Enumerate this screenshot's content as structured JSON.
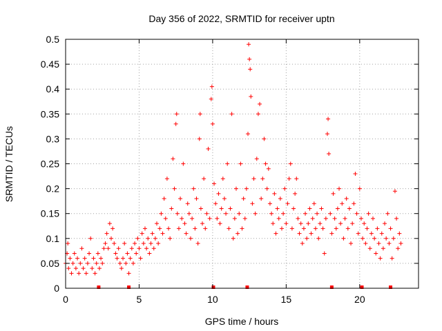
{
  "chart_data": {
    "type": "scatter",
    "title": "Day 356 of 2022, SRMTID for receiver uptn",
    "xlabel": "GPS time / hours",
    "ylabel": "SRMTID / TECUs",
    "xlim": [
      0,
      24
    ],
    "ylim": [
      0,
      0.5
    ],
    "grid": true,
    "marker": "+",
    "color": "#ff0000",
    "x_ticks": [
      0,
      5,
      10,
      15,
      20
    ],
    "x_tick_labels": [
      "0",
      "5",
      "10",
      "15",
      "20"
    ],
    "y_ticks": [
      0,
      0.05,
      0.1,
      0.15,
      0.2,
      0.25,
      0.3,
      0.35,
      0.4,
      0.45,
      0.5
    ],
    "y_tick_labels": [
      "0",
      "0.05",
      "0.1",
      "0.15",
      "0.2",
      "0.25",
      "0.3",
      "0.35",
      "0.4",
      "0.45",
      "0.5"
    ],
    "baseline_markers_x": [
      2.25,
      4.3,
      10.05,
      12.35,
      18.1,
      20.15,
      22.1
    ],
    "series": [
      {
        "name": "SRMTID",
        "points": [
          [
            0.0,
            0.05
          ],
          [
            0.1,
            0.07
          ],
          [
            0.15,
            0.09
          ],
          [
            0.2,
            0.04
          ],
          [
            0.3,
            0.06
          ],
          [
            0.4,
            0.03
          ],
          [
            0.5,
            0.05
          ],
          [
            0.6,
            0.07
          ],
          [
            0.7,
            0.04
          ],
          [
            0.8,
            0.06
          ],
          [
            0.9,
            0.03
          ],
          [
            1.0,
            0.05
          ],
          [
            1.1,
            0.08
          ],
          [
            1.2,
            0.04
          ],
          [
            1.3,
            0.06
          ],
          [
            1.4,
            0.03
          ],
          [
            1.5,
            0.05
          ],
          [
            1.6,
            0.07
          ],
          [
            1.7,
            0.1
          ],
          [
            1.8,
            0.04
          ],
          [
            1.9,
            0.06
          ],
          [
            2.0,
            0.03
          ],
          [
            2.1,
            0.05
          ],
          [
            2.2,
            0.07
          ],
          [
            2.3,
            0.04
          ],
          [
            2.4,
            0.06
          ],
          [
            2.5,
            0.05
          ],
          [
            2.6,
            0.08
          ],
          [
            2.7,
            0.09
          ],
          [
            2.8,
            0.11
          ],
          [
            2.9,
            0.08
          ],
          [
            3.0,
            0.13
          ],
          [
            3.1,
            0.1
          ],
          [
            3.2,
            0.12
          ],
          [
            3.3,
            0.09
          ],
          [
            3.4,
            0.07
          ],
          [
            3.5,
            0.06
          ],
          [
            3.6,
            0.08
          ],
          [
            3.7,
            0.05
          ],
          [
            3.8,
            0.04
          ],
          [
            3.9,
            0.06
          ],
          [
            4.0,
            0.09
          ],
          [
            4.1,
            0.05
          ],
          [
            4.2,
            0.07
          ],
          [
            4.3,
            0.03
          ],
          [
            4.4,
            0.06
          ],
          [
            4.5,
            0.08
          ],
          [
            4.6,
            0.05
          ],
          [
            4.7,
            0.09
          ],
          [
            4.8,
            0.07
          ],
          [
            4.9,
            0.1
          ],
          [
            5.0,
            0.08
          ],
          [
            5.1,
            0.06
          ],
          [
            5.2,
            0.11
          ],
          [
            5.3,
            0.09
          ],
          [
            5.4,
            0.12
          ],
          [
            5.5,
            0.08
          ],
          [
            5.6,
            0.1
          ],
          [
            5.7,
            0.07
          ],
          [
            5.8,
            0.09
          ],
          [
            5.9,
            0.11
          ],
          [
            6.0,
            0.08
          ],
          [
            6.1,
            0.1
          ],
          [
            6.2,
            0.13
          ],
          [
            6.3,
            0.09
          ],
          [
            6.4,
            0.12
          ],
          [
            6.5,
            0.15
          ],
          [
            6.6,
            0.11
          ],
          [
            6.7,
            0.18
          ],
          [
            6.8,
            0.14
          ],
          [
            6.9,
            0.22
          ],
          [
            7.0,
            0.12
          ],
          [
            7.1,
            0.1
          ],
          [
            7.2,
            0.16
          ],
          [
            7.3,
            0.26
          ],
          [
            7.4,
            0.2
          ],
          [
            7.5,
            0.33
          ],
          [
            7.55,
            0.35
          ],
          [
            7.6,
            0.15
          ],
          [
            7.7,
            0.12
          ],
          [
            7.8,
            0.18
          ],
          [
            7.9,
            0.14
          ],
          [
            8.0,
            0.25
          ],
          [
            8.1,
            0.13
          ],
          [
            8.2,
            0.11
          ],
          [
            8.3,
            0.17
          ],
          [
            8.4,
            0.15
          ],
          [
            8.5,
            0.1
          ],
          [
            8.6,
            0.14
          ],
          [
            8.7,
            0.2
          ],
          [
            8.8,
            0.12
          ],
          [
            8.9,
            0.18
          ],
          [
            9.0,
            0.09
          ],
          [
            9.1,
            0.3
          ],
          [
            9.15,
            0.35
          ],
          [
            9.2,
            0.16
          ],
          [
            9.3,
            0.13
          ],
          [
            9.4,
            0.22
          ],
          [
            9.5,
            0.12
          ],
          [
            9.6,
            0.15
          ],
          [
            9.7,
            0.28
          ],
          [
            9.8,
            0.14
          ],
          [
            9.9,
            0.38
          ],
          [
            9.95,
            0.405
          ],
          [
            10.0,
            0.33
          ],
          [
            10.1,
            0.21
          ],
          [
            10.2,
            0.17
          ],
          [
            10.3,
            0.14
          ],
          [
            10.4,
            0.19
          ],
          [
            10.5,
            0.13
          ],
          [
            10.6,
            0.16
          ],
          [
            10.7,
            0.22
          ],
          [
            10.8,
            0.18
          ],
          [
            10.9,
            0.15
          ],
          [
            11.0,
            0.25
          ],
          [
            11.1,
            0.12
          ],
          [
            11.2,
            0.16
          ],
          [
            11.3,
            0.35
          ],
          [
            11.4,
            0.1
          ],
          [
            11.5,
            0.14
          ],
          [
            11.6,
            0.2
          ],
          [
            11.7,
            0.11
          ],
          [
            11.8,
            0.15
          ],
          [
            11.9,
            0.25
          ],
          [
            12.0,
            0.12
          ],
          [
            12.1,
            0.18
          ],
          [
            12.2,
            0.14
          ],
          [
            12.3,
            0.2
          ],
          [
            12.4,
            0.31
          ],
          [
            12.45,
            0.49
          ],
          [
            12.5,
            0.46
          ],
          [
            12.55,
            0.44
          ],
          [
            12.6,
            0.385
          ],
          [
            12.7,
            0.17
          ],
          [
            12.8,
            0.22
          ],
          [
            12.9,
            0.15
          ],
          [
            13.0,
            0.26
          ],
          [
            13.1,
            0.35
          ],
          [
            13.2,
            0.37
          ],
          [
            13.3,
            0.18
          ],
          [
            13.4,
            0.22
          ],
          [
            13.5,
            0.3
          ],
          [
            13.6,
            0.25
          ],
          [
            13.7,
            0.2
          ],
          [
            13.8,
            0.24
          ],
          [
            13.9,
            0.17
          ],
          [
            14.0,
            0.15
          ],
          [
            14.1,
            0.13
          ],
          [
            14.2,
            0.19
          ],
          [
            14.3,
            0.11
          ],
          [
            14.4,
            0.16
          ],
          [
            14.5,
            0.14
          ],
          [
            14.6,
            0.18
          ],
          [
            14.7,
            0.12
          ],
          [
            14.8,
            0.15
          ],
          [
            14.9,
            0.2
          ],
          [
            15.0,
            0.13
          ],
          [
            15.1,
            0.17
          ],
          [
            15.2,
            0.22
          ],
          [
            15.3,
            0.25
          ],
          [
            15.4,
            0.12
          ],
          [
            15.5,
            0.16
          ],
          [
            15.6,
            0.19
          ],
          [
            15.7,
            0.22
          ],
          [
            15.8,
            0.14
          ],
          [
            15.9,
            0.11
          ],
          [
            16.0,
            0.13
          ],
          [
            16.1,
            0.09
          ],
          [
            16.2,
            0.12
          ],
          [
            16.3,
            0.15
          ],
          [
            16.4,
            0.1
          ],
          [
            16.5,
            0.13
          ],
          [
            16.6,
            0.16
          ],
          [
            16.7,
            0.11
          ],
          [
            16.8,
            0.14
          ],
          [
            16.9,
            0.17
          ],
          [
            17.0,
            0.12
          ],
          [
            17.1,
            0.15
          ],
          [
            17.2,
            0.1
          ],
          [
            17.3,
            0.13
          ],
          [
            17.4,
            0.16
          ],
          [
            17.5,
            0.12
          ],
          [
            17.6,
            0.07
          ],
          [
            17.7,
            0.14
          ],
          [
            17.8,
            0.31
          ],
          [
            17.85,
            0.34
          ],
          [
            17.9,
            0.27
          ],
          [
            18.0,
            0.15
          ],
          [
            18.1,
            0.11
          ],
          [
            18.2,
            0.19
          ],
          [
            18.3,
            0.14
          ],
          [
            18.4,
            0.12
          ],
          [
            18.5,
            0.16
          ],
          [
            18.6,
            0.2
          ],
          [
            18.7,
            0.13
          ],
          [
            18.8,
            0.17
          ],
          [
            18.9,
            0.1
          ],
          [
            19.0,
            0.14
          ],
          [
            19.1,
            0.18
          ],
          [
            19.2,
            0.12
          ],
          [
            19.3,
            0.16
          ],
          [
            19.4,
            0.09
          ],
          [
            19.5,
            0.13
          ],
          [
            19.6,
            0.17
          ],
          [
            19.7,
            0.23
          ],
          [
            19.8,
            0.15
          ],
          [
            19.9,
            0.11
          ],
          [
            20.0,
            0.2
          ],
          [
            20.1,
            0.14
          ],
          [
            20.2,
            0.1
          ],
          [
            20.3,
            0.13
          ],
          [
            20.4,
            0.09
          ],
          [
            20.5,
            0.12
          ],
          [
            20.6,
            0.15
          ],
          [
            20.7,
            0.08
          ],
          [
            20.8,
            0.11
          ],
          [
            20.9,
            0.14
          ],
          [
            21.0,
            0.1
          ],
          [
            21.1,
            0.07
          ],
          [
            21.2,
            0.12
          ],
          [
            21.3,
            0.09
          ],
          [
            21.4,
            0.06
          ],
          [
            21.5,
            0.11
          ],
          [
            21.6,
            0.08
          ],
          [
            21.7,
            0.13
          ],
          [
            21.8,
            0.1
          ],
          [
            21.9,
            0.15
          ],
          [
            22.0,
            0.09
          ],
          [
            22.1,
            0.12
          ],
          [
            22.2,
            0.06
          ],
          [
            22.3,
            0.1
          ],
          [
            22.4,
            0.195
          ],
          [
            22.5,
            0.14
          ],
          [
            22.6,
            0.08
          ],
          [
            22.7,
            0.11
          ],
          [
            22.8,
            0.09
          ]
        ]
      }
    ]
  }
}
